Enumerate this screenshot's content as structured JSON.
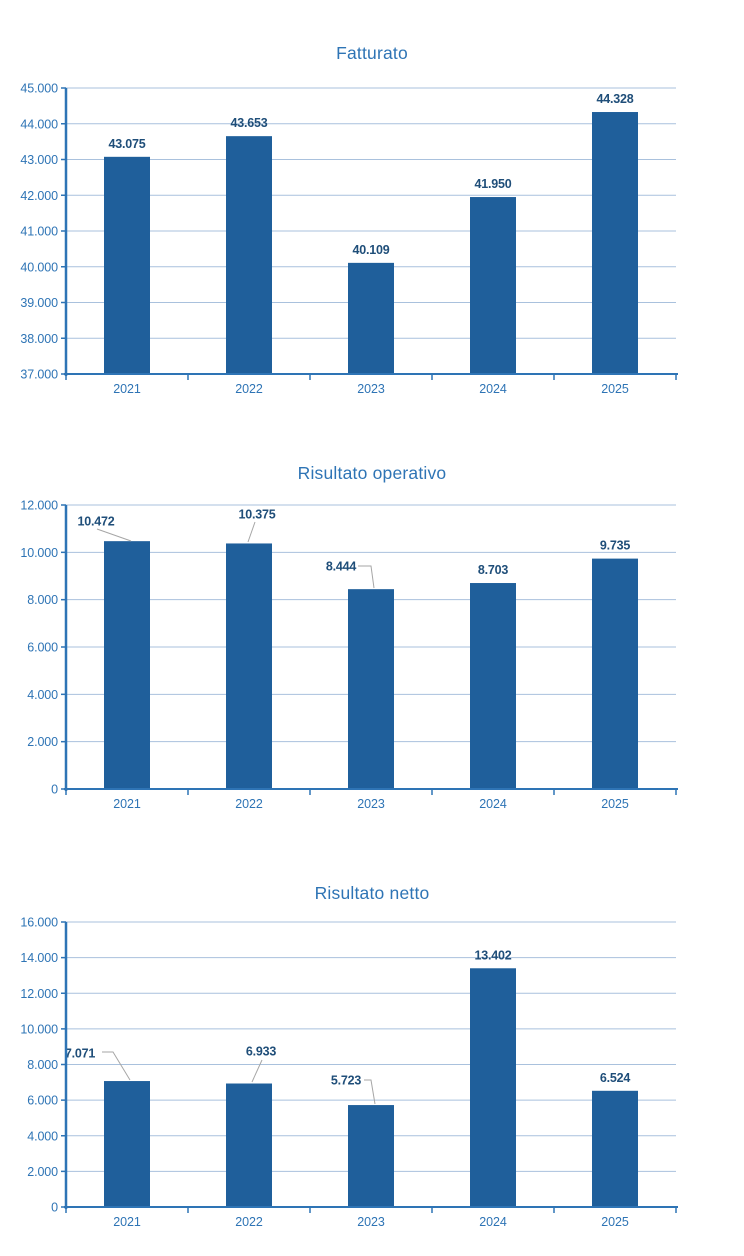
{
  "page": {
    "background": "#ffffff"
  },
  "colors": {
    "title_blue": "#2E74B5",
    "axis_blue": "#2E74B5",
    "tick_label_blue": "#2E74B5",
    "bar_blue": "#1F5F9B",
    "data_label_navy": "#1F4E79",
    "gridline_blue": "#A9C1DD",
    "leader_gray": "#A6A6A6"
  },
  "chart_data": [
    {
      "type": "bar",
      "title": "Fatturato",
      "categories": [
        "2021",
        "2022",
        "2023",
        "2024",
        "2025"
      ],
      "values": [
        43075,
        43653,
        40109,
        41950,
        44328
      ],
      "value_labels": [
        "43.075",
        "43.653",
        "40.109",
        "41.950",
        "44.328"
      ],
      "xlabel": "",
      "ylabel": "",
      "ylim": [
        37000,
        45000
      ],
      "ytick_step": 1000,
      "ytick_labels": [
        "45.000",
        "44.000",
        "43.000",
        "42.000",
        "41.000",
        "40.000",
        "39.000",
        "38.000",
        "37.000"
      ],
      "grid": true,
      "legend": "none",
      "callouts": [
        null,
        null,
        null,
        null,
        null
      ]
    },
    {
      "type": "bar",
      "title": "Risultato operativo",
      "categories": [
        "2021",
        "2022",
        "2023",
        "2024",
        "2025"
      ],
      "values": [
        10472,
        10375,
        8444,
        8703,
        9735
      ],
      "value_labels": [
        "10.472",
        "10.375",
        "8.444",
        "8.703",
        "9.735"
      ],
      "xlabel": "",
      "ylabel": "",
      "ylim": [
        0,
        12000
      ],
      "ytick_step": 2000,
      "ytick_labels": [
        "12.000",
        "10.000",
        "8.000",
        "6.000",
        "4.000",
        "2.000",
        "0"
      ],
      "grid": true,
      "legend": "none",
      "callouts": [
        {
          "label": [
            96,
            101
          ],
          "leader": [
            [
              97,
              109
            ],
            [
              131,
              121
            ]
          ]
        },
        {
          "label": [
            257,
            94
          ],
          "leader": [
            [
              255,
              102
            ],
            [
              248,
              122
            ]
          ]
        },
        {
          "label": [
            341,
            146
          ],
          "leader": [
            [
              358,
              146
            ],
            [
              371,
              146
            ],
            [
              374,
              168
            ]
          ]
        },
        null,
        null
      ]
    },
    {
      "type": "bar",
      "title": "Risultato netto",
      "categories": [
        "2021",
        "2022",
        "2023",
        "2024",
        "2025"
      ],
      "values": [
        7071,
        6933,
        5723,
        13402,
        6524
      ],
      "value_labels": [
        "7.071",
        "6.933",
        "5.723",
        "13.402",
        "6.524"
      ],
      "xlabel": "",
      "ylabel": "",
      "ylim": [
        0,
        16000
      ],
      "ytick_step": 2000,
      "ytick_labels": [
        "16.000",
        "14.000",
        "12.000",
        "10.000",
        "8.000",
        "6.000",
        "4.000",
        "2.000",
        "0"
      ],
      "grid": true,
      "legend": "none",
      "callouts": [
        {
          "label": [
            80,
            213
          ],
          "leader": [
            [
              102,
              212
            ],
            [
              113,
              212
            ],
            [
              130,
              240
            ]
          ]
        },
        {
          "label": [
            261,
            211
          ],
          "leader": [
            [
              262,
              220
            ],
            [
              252,
              242
            ]
          ]
        },
        {
          "label": [
            346,
            240
          ],
          "leader": [
            [
              364,
              240
            ],
            [
              371,
              240
            ],
            [
              375,
              264
            ]
          ]
        },
        null,
        null
      ]
    }
  ]
}
